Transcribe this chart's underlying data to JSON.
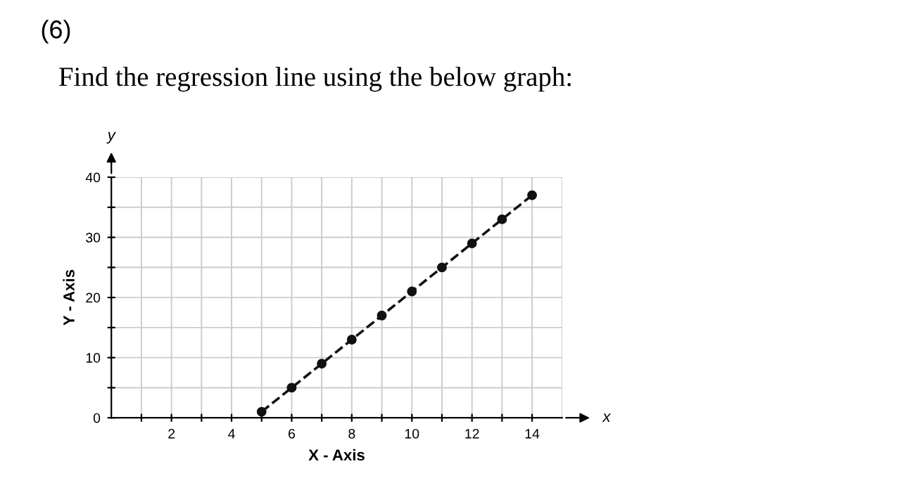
{
  "chart_data": {
    "type": "line",
    "title": "(6)",
    "subtitle": "Find the regression line using the below graph:",
    "xlabel": "X - Axis",
    "ylabel": "Y - Axis",
    "annotations": [
      "x",
      "y"
    ],
    "x": [
      5,
      6,
      7,
      8,
      9,
      10,
      11,
      12,
      13,
      14
    ],
    "series": [
      {
        "color": "#111111",
        "values": [
          1,
          5,
          9,
          13,
          17,
          21,
          25,
          29,
          33,
          37
        ]
      }
    ],
    "marker": "circle",
    "line_style": "dashed",
    "grid": true,
    "legend": false,
    "xlim": [
      0,
      15
    ],
    "ylim": [
      0,
      40
    ],
    "xticks": [
      {
        "value": 1,
        "label": null
      },
      2,
      {
        "value": 3,
        "label": null
      },
      4,
      {
        "value": 5,
        "label": null
      },
      6,
      {
        "value": 7,
        "label": null
      },
      8,
      {
        "value": 9,
        "label": null
      },
      10,
      {
        "value": 11,
        "label": null
      },
      12,
      {
        "value": 13,
        "label": null
      },
      14
    ],
    "yticks": [
      0,
      {
        "value": 5,
        "label": null
      },
      10,
      {
        "value": 15,
        "label": null
      },
      20,
      {
        "value": 25,
        "label": null
      },
      30,
      {
        "value": 35,
        "label": null
      },
      40
    ]
  }
}
